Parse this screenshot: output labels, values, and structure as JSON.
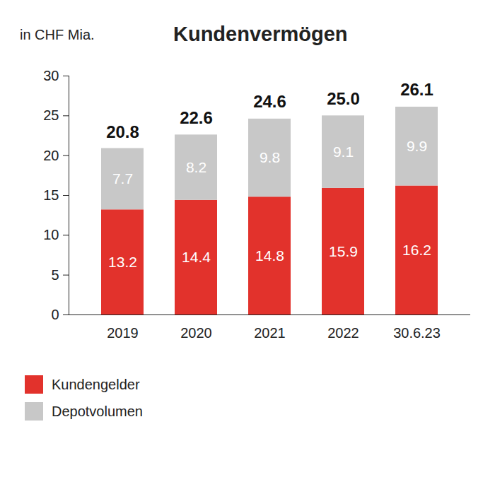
{
  "chart_data": {
    "type": "bar",
    "stacked": true,
    "title": "Kundenvermögen",
    "ylabel": "in CHF Mia.",
    "categories": [
      "2019",
      "2020",
      "2021",
      "2022",
      "30.6.23"
    ],
    "series": [
      {
        "name": "Kundengelder",
        "color": "#e2322c",
        "values": [
          13.2,
          14.4,
          14.8,
          15.9,
          16.2
        ]
      },
      {
        "name": "Depotvolumen",
        "color": "#c8c8c8",
        "values": [
          7.7,
          8.2,
          9.8,
          9.1,
          9.9
        ]
      }
    ],
    "totals": [
      20.8,
      22.6,
      24.6,
      25.0,
      26.1
    ],
    "total_labels": [
      "20.8",
      "22.6",
      "24.6",
      "25.0",
      "26.1"
    ],
    "ylim": [
      0,
      30
    ],
    "yticks": [
      0,
      5,
      10,
      15,
      20,
      25,
      30
    ],
    "grid": false,
    "data_labels": true,
    "legend": "bottom-left"
  }
}
